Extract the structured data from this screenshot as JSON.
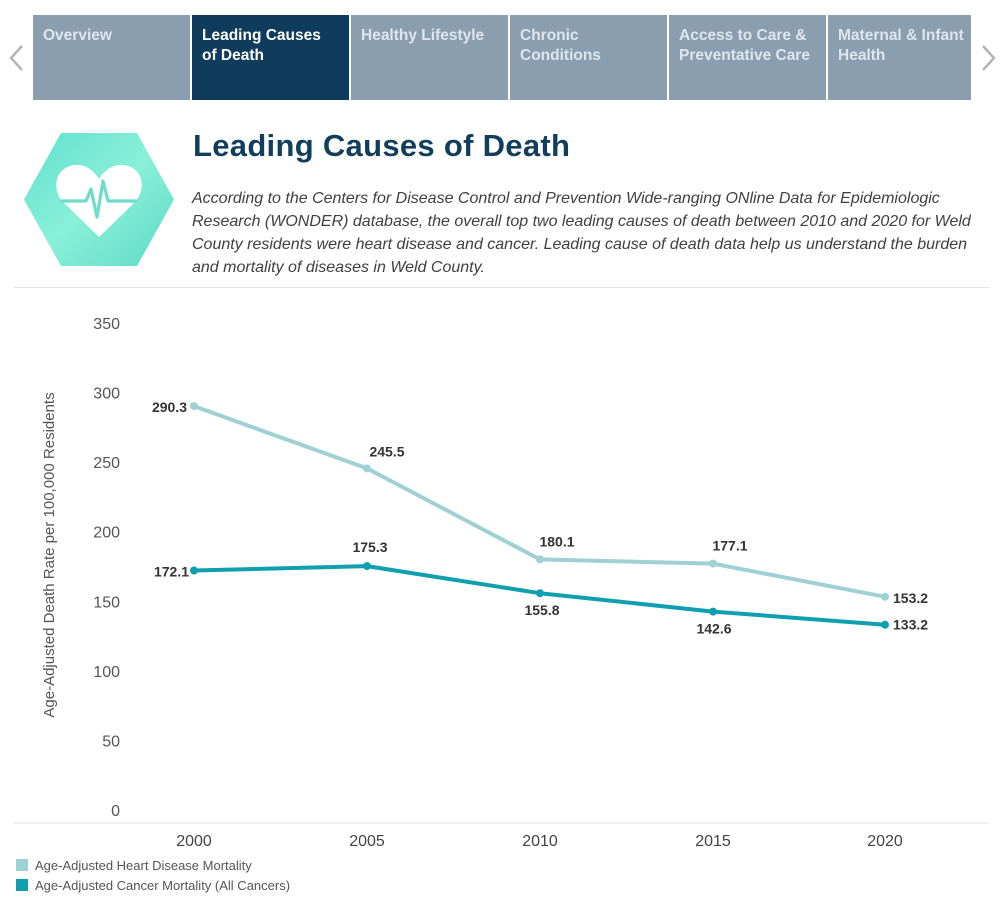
{
  "nav": {
    "tabs": [
      {
        "label": "Overview",
        "active": false
      },
      {
        "label": "Leading Causes of Death",
        "active": true
      },
      {
        "label": "Healthy Lifestyle",
        "active": false
      },
      {
        "label": "Chronic Conditions",
        "active": false
      },
      {
        "label": "Access to Care & Preventative Care",
        "active": false
      },
      {
        "label": "Maternal & Infant Health",
        "active": false
      }
    ],
    "prev_icon": "chevron-left-icon",
    "next_icon": "chevron-right-icon"
  },
  "header": {
    "icon": "heartbeat-hexagon-icon",
    "title": "Leading Causes of Death",
    "description": "According to the Centers for Disease Control and Prevention Wide-ranging ONline Data for Epidemiologic Research (WONDER) database, the overall top two leading causes of death between 2010 and 2020 for Weld County residents were heart disease and cancer. Leading cause of death data help us understand the burden and mortality of diseases in Weld County."
  },
  "colors": {
    "heart": "#9fd0d3",
    "cancer": "#0f9fae",
    "active_tab": "#0f3b5c",
    "tab": "#8a9eb0",
    "title": "#123e5e"
  },
  "chart_data": {
    "type": "line",
    "ylabel": "Age-Adjusted Death Rate per 100,000 Residents",
    "xlabel": "",
    "ylim": [
      0,
      350
    ],
    "yticks": [
      0,
      50,
      100,
      150,
      200,
      250,
      300,
      350
    ],
    "x": [
      2000,
      2005,
      2010,
      2015,
      2020
    ],
    "series": [
      {
        "name": "Age-Adjusted Heart Disease Mortality",
        "values": [
          290.3,
          245.5,
          180.1,
          177.1,
          153.2
        ],
        "labels": [
          "290.3",
          "245.5",
          "180.1",
          "177.1",
          "153.2"
        ]
      },
      {
        "name": "Age-Adjusted Cancer Mortality (All Cancers)",
        "values": [
          172.1,
          175.3,
          155.8,
          142.6,
          133.2
        ],
        "labels": [
          "172.1",
          "175.3",
          "155.8",
          "142.6",
          "133.2"
        ]
      }
    ],
    "legend_position": "bottom-left"
  }
}
